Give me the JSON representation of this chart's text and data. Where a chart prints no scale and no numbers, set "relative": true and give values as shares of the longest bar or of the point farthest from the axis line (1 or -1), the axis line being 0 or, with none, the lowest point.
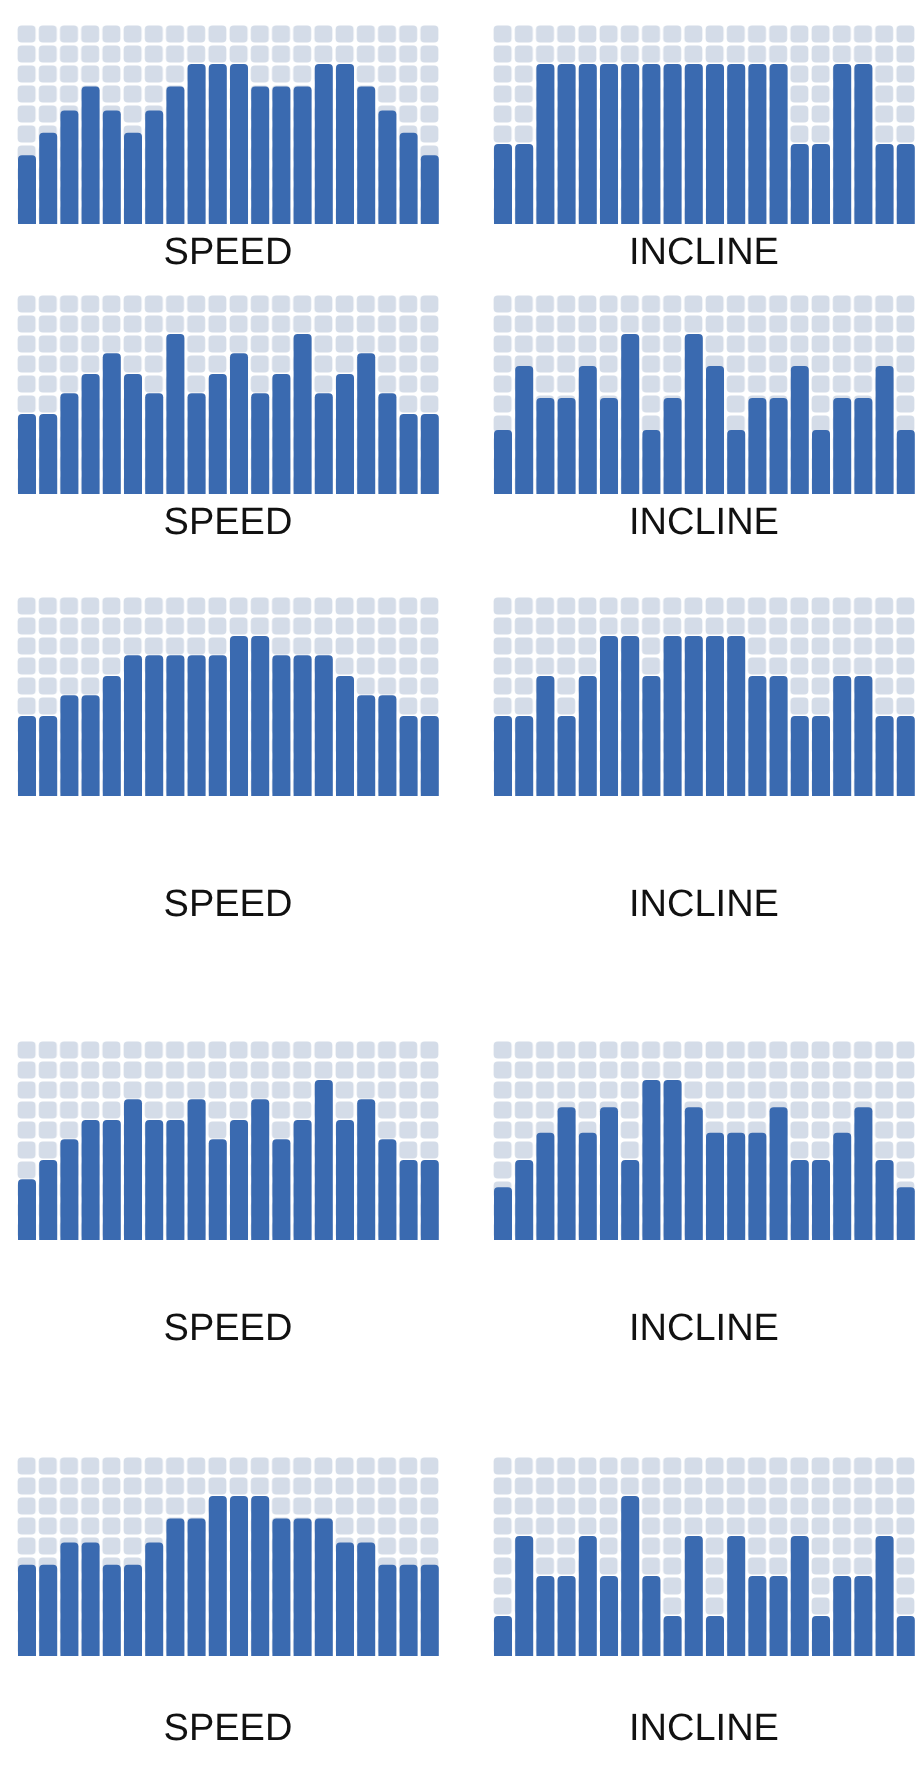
{
  "chart_data": [
    {
      "type": "bar",
      "xlabel": "SPEED",
      "relative": true,
      "tick_labels": false,
      "categories": [
        null,
        null,
        null,
        null,
        null,
        null,
        null,
        null,
        null,
        null,
        null,
        null,
        null,
        null,
        null,
        null,
        null,
        null,
        null,
        null
      ],
      "color": "#3a6ab0",
      "values": [
        0.43,
        0.57,
        0.71,
        0.86,
        0.71,
        0.57,
        0.71,
        0.86,
        1,
        1,
        1,
        0.86,
        0.86,
        0.86,
        1,
        1,
        0.86,
        0.71,
        0.57,
        0.43
      ]
    },
    {
      "type": "bar",
      "xlabel": "INCLINE",
      "relative": true,
      "tick_labels": false,
      "categories": [
        null,
        null,
        null,
        null,
        null,
        null,
        null,
        null,
        null,
        null,
        null,
        null,
        null,
        null,
        null,
        null,
        null,
        null,
        null,
        null
      ],
      "color": "#3a6ab0",
      "values": [
        0.5,
        0.5,
        1,
        1,
        1,
        1,
        1,
        1,
        1,
        1,
        1,
        1,
        1,
        1,
        0.5,
        0.5,
        1,
        1,
        0.5,
        0.5
      ]
    },
    {
      "type": "bar",
      "xlabel": "SPEED",
      "relative": true,
      "tick_labels": false,
      "categories": [
        null,
        null,
        null,
        null,
        null,
        null,
        null,
        null,
        null,
        null,
        null,
        null,
        null,
        null,
        null,
        null,
        null,
        null,
        null,
        null
      ],
      "color": "#3a6ab0",
      "values": [
        0.5,
        0.5,
        0.63,
        0.75,
        0.88,
        0.75,
        0.63,
        1,
        0.63,
        0.75,
        0.88,
        0.63,
        0.75,
        1,
        0.63,
        0.75,
        0.88,
        0.63,
        0.5,
        0.5
      ]
    },
    {
      "type": "bar",
      "xlabel": "INCLINE",
      "relative": true,
      "tick_labels": false,
      "categories": [
        null,
        null,
        null,
        null,
        null,
        null,
        null,
        null,
        null,
        null,
        null,
        null,
        null,
        null,
        null,
        null,
        null,
        null,
        null,
        null
      ],
      "color": "#3a6ab0",
      "values": [
        0.4,
        0.8,
        0.6,
        0.6,
        0.8,
        0.6,
        1,
        0.4,
        0.6,
        1,
        0.8,
        0.4,
        0.6,
        0.6,
        0.8,
        0.4,
        0.6,
        0.6,
        0.8,
        0.4
      ]
    },
    {
      "type": "bar",
      "xlabel": "SPEED",
      "relative": true,
      "tick_labels": false,
      "categories": [
        null,
        null,
        null,
        null,
        null,
        null,
        null,
        null,
        null,
        null,
        null,
        null,
        null,
        null,
        null,
        null,
        null,
        null,
        null,
        null
      ],
      "color": "#3a6ab0",
      "values": [
        0.5,
        0.5,
        0.63,
        0.63,
        0.75,
        0.88,
        0.88,
        0.88,
        0.88,
        0.88,
        1,
        1,
        0.88,
        0.88,
        0.88,
        0.75,
        0.63,
        0.63,
        0.5,
        0.5
      ]
    },
    {
      "type": "bar",
      "xlabel": "INCLINE",
      "relative": true,
      "tick_labels": false,
      "categories": [
        null,
        null,
        null,
        null,
        null,
        null,
        null,
        null,
        null,
        null,
        null,
        null,
        null,
        null,
        null,
        null,
        null,
        null,
        null,
        null
      ],
      "color": "#3a6ab0",
      "values": [
        0.5,
        0.5,
        0.75,
        0.5,
        0.75,
        1,
        1,
        0.75,
        1,
        1,
        1,
        1,
        0.75,
        0.75,
        0.5,
        0.5,
        0.75,
        0.75,
        0.5,
        0.5
      ]
    },
    {
      "type": "bar",
      "xlabel": "SPEED",
      "relative": true,
      "tick_labels": false,
      "categories": [
        null,
        null,
        null,
        null,
        null,
        null,
        null,
        null,
        null,
        null,
        null,
        null,
        null,
        null,
        null,
        null,
        null,
        null,
        null,
        null
      ],
      "color": "#3a6ab0",
      "values": [
        0.38,
        0.5,
        0.63,
        0.75,
        0.75,
        0.88,
        0.75,
        0.75,
        0.88,
        0.63,
        0.75,
        0.88,
        0.63,
        0.75,
        1,
        0.75,
        0.88,
        0.63,
        0.5,
        0.5
      ]
    },
    {
      "type": "bar",
      "xlabel": "INCLINE",
      "relative": true,
      "tick_labels": false,
      "categories": [
        null,
        null,
        null,
        null,
        null,
        null,
        null,
        null,
        null,
        null,
        null,
        null,
        null,
        null,
        null,
        null,
        null,
        null,
        null,
        null
      ],
      "color": "#3a6ab0",
      "values": [
        0.33,
        0.5,
        0.67,
        0.83,
        0.67,
        0.83,
        0.5,
        1,
        1,
        0.83,
        0.67,
        0.67,
        0.67,
        0.83,
        0.5,
        0.5,
        0.67,
        0.83,
        0.5,
        0.33
      ]
    },
    {
      "type": "bar",
      "xlabel": "SPEED",
      "relative": true,
      "tick_labels": false,
      "categories": [
        null,
        null,
        null,
        null,
        null,
        null,
        null,
        null,
        null,
        null,
        null,
        null,
        null,
        null,
        null,
        null,
        null,
        null,
        null,
        null
      ],
      "color": "#3a6ab0",
      "values": [
        0.57,
        0.57,
        0.71,
        0.71,
        0.57,
        0.57,
        0.71,
        0.86,
        0.86,
        1,
        1,
        1,
        0.86,
        0.86,
        0.86,
        0.71,
        0.71,
        0.57,
        0.57,
        0.57
      ]
    },
    {
      "type": "bar",
      "xlabel": "INCLINE",
      "relative": true,
      "tick_labels": false,
      "categories": [
        null,
        null,
        null,
        null,
        null,
        null,
        null,
        null,
        null,
        null,
        null,
        null,
        null,
        null,
        null,
        null,
        null,
        null,
        null,
        null
      ],
      "color": "#3a6ab0",
      "values": [
        0.25,
        0.75,
        0.5,
        0.5,
        0.75,
        0.5,
        1,
        0.5,
        0.25,
        0.75,
        0.25,
        0.75,
        0.5,
        0.5,
        0.75,
        0.25,
        0.5,
        0.5,
        0.75,
        0.25
      ]
    }
  ]
}
